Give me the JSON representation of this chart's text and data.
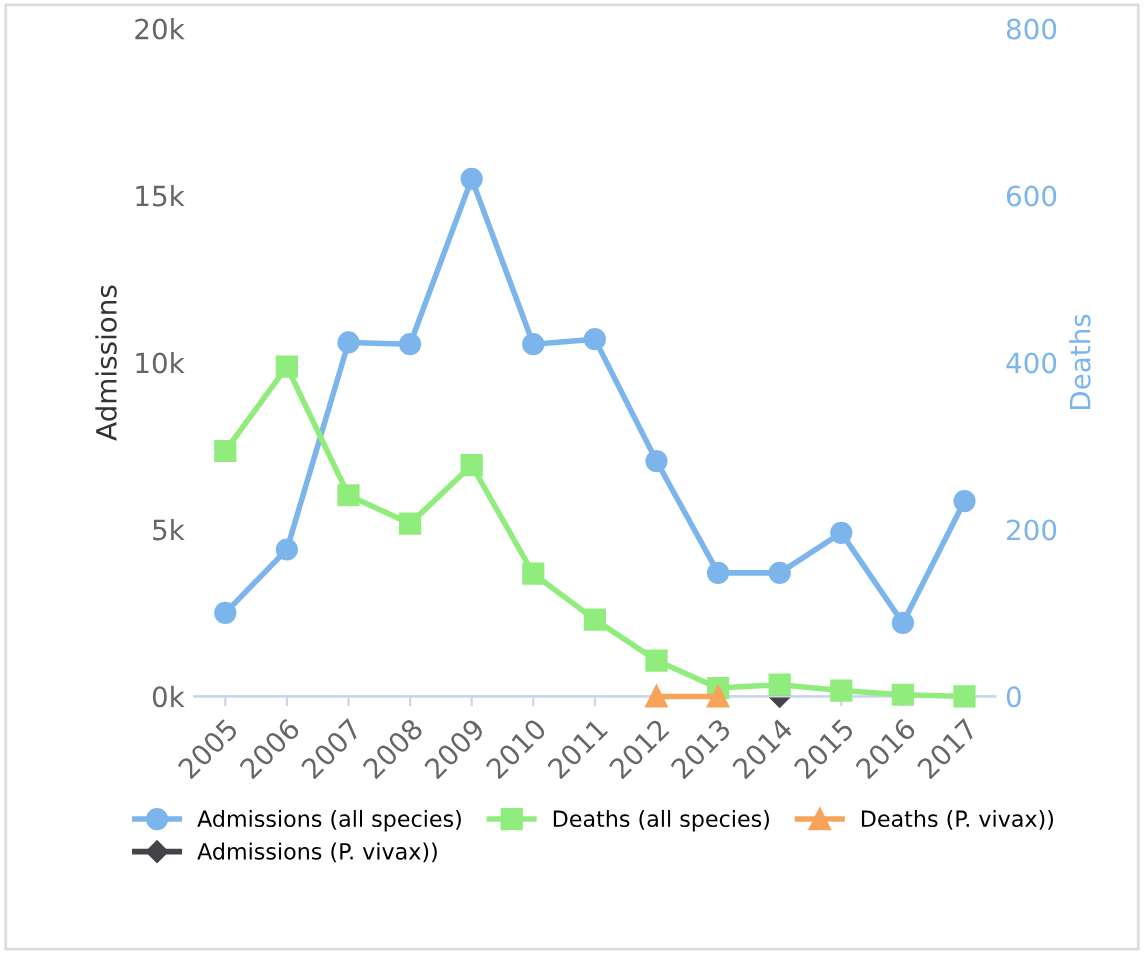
{
  "chart_data": {
    "type": "line",
    "xlabel": null,
    "ylabel": "Admissions",
    "y2label": "Deaths",
    "categories": [
      "2005",
      "2006",
      "2007",
      "2008",
      "2009",
      "2010",
      "2011",
      "2012",
      "2013",
      "2014",
      "2015",
      "2016",
      "2017"
    ],
    "series": [
      {
        "name": "Admissions (all species)",
        "color": "#7cb5ec",
        "marker": "circle",
        "values": [
          2500,
          4400,
          10600,
          10550,
          15500,
          10550,
          10700,
          7050,
          3700,
          3700,
          4900,
          2200,
          5850
        ]
      },
      {
        "name": "Admissions (P. vivax))",
        "color": "#434348",
        "marker": "diamond",
        "values": [
          null,
          null,
          null,
          null,
          null,
          null,
          null,
          null,
          null,
          0,
          null,
          null,
          null
        ]
      },
      {
        "name": "Deaths (all species)",
        "color": "#90ed7d",
        "marker": "square",
        "axis": "y2",
        "values": [
          294,
          395,
          241,
          207,
          277,
          147,
          92,
          43,
          10,
          14,
          7,
          2,
          0
        ]
      },
      {
        "name": "Deaths (P. vivax))",
        "color": "#f7a35c",
        "marker": "triangle",
        "axis": "y2",
        "values": [
          null,
          null,
          null,
          null,
          null,
          null,
          null,
          0,
          0,
          null,
          null,
          null,
          null
        ]
      }
    ],
    "ylim": [
      0,
      20000
    ],
    "yticks": [
      {
        "value": 0,
        "label": "0k"
      },
      {
        "value": 5000,
        "label": "5k"
      },
      {
        "value": 10000,
        "label": "10k"
      },
      {
        "value": 15000,
        "label": "15k"
      },
      {
        "value": 20000,
        "label": "20k"
      }
    ],
    "y2lim": [
      0,
      800
    ],
    "y2ticks": [
      0,
      200,
      400,
      600,
      800
    ],
    "grid": false,
    "legend": "bottom"
  }
}
